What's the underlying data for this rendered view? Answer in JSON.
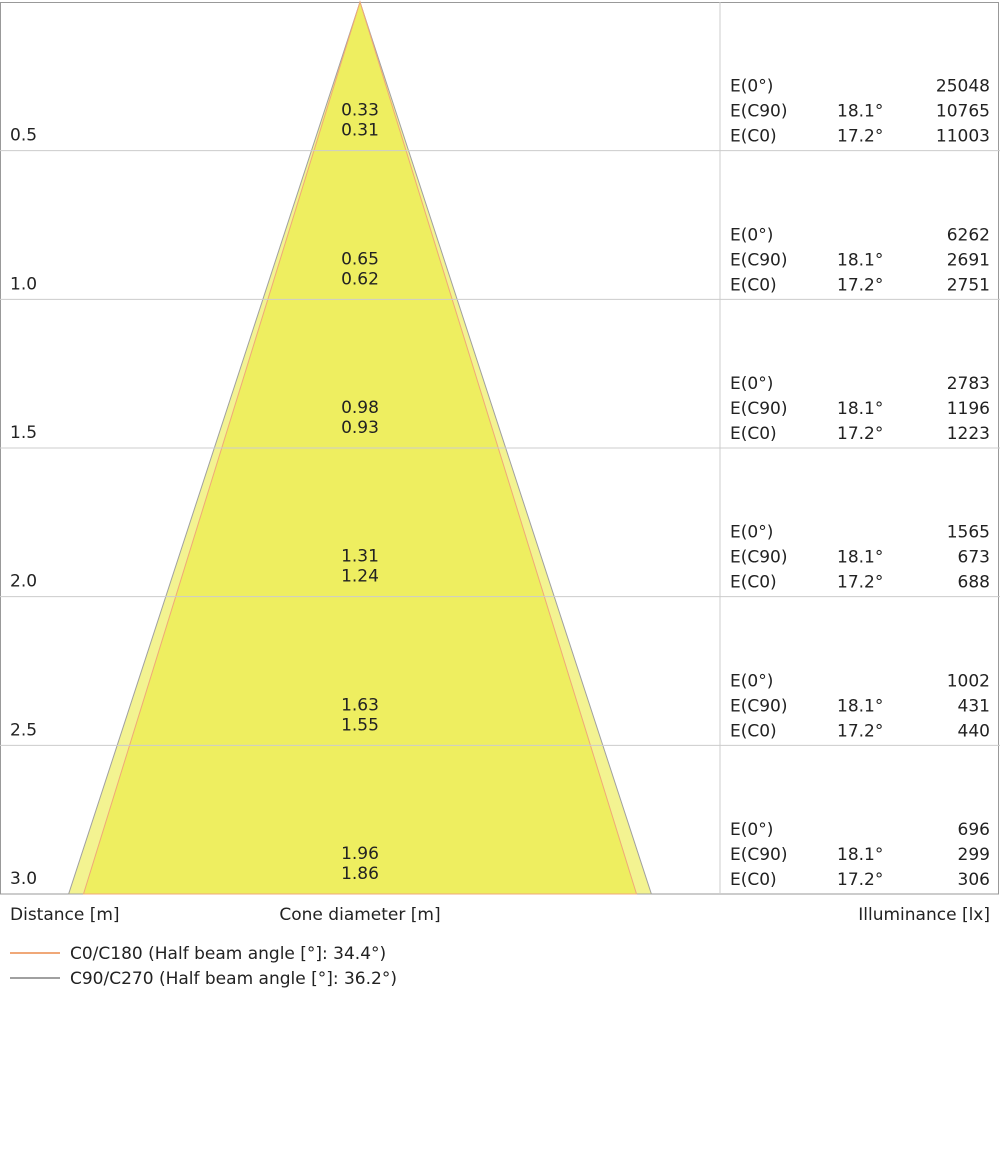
{
  "axis_labels": {
    "distance": "Distance [m]",
    "diameter": "Cone diameter [m]",
    "illuminance": "Illuminance [lx]"
  },
  "legend": [
    {
      "label": "C0/C180 (Half beam angle [°]: 34.4°)",
      "color": "#f0a878"
    },
    {
      "label": "C90/C270 (Half beam angle [°]: 36.2°)",
      "color": "#a0a0a0"
    }
  ],
  "rows": [
    {
      "distance": "0.5",
      "diameter_c90": 0.33,
      "diameter_c0": 0.31,
      "readings": [
        {
          "label": "E(0°)",
          "value": 25048
        },
        {
          "label": "E(C90)",
          "angle": "18.1°",
          "value": 10765
        },
        {
          "label": "E(C0)",
          "angle": "17.2°",
          "value": 11003
        }
      ]
    },
    {
      "distance": "1.0",
      "diameter_c90": 0.65,
      "diameter_c0": 0.62,
      "readings": [
        {
          "label": "E(0°)",
          "value": 6262
        },
        {
          "label": "E(C90)",
          "angle": "18.1°",
          "value": 2691
        },
        {
          "label": "E(C0)",
          "angle": "17.2°",
          "value": 2751
        }
      ]
    },
    {
      "distance": "1.5",
      "diameter_c90": 0.98,
      "diameter_c0": 0.93,
      "readings": [
        {
          "label": "E(0°)",
          "value": 2783
        },
        {
          "label": "E(C90)",
          "angle": "18.1°",
          "value": 1196
        },
        {
          "label": "E(C0)",
          "angle": "17.2°",
          "value": 1223
        }
      ]
    },
    {
      "distance": "2.0",
      "diameter_c90": 1.31,
      "diameter_c0": 1.24,
      "readings": [
        {
          "label": "E(0°)",
          "value": 1565
        },
        {
          "label": "E(C90)",
          "angle": "18.1°",
          "value": 673
        },
        {
          "label": "E(C0)",
          "angle": "17.2°",
          "value": 688
        }
      ]
    },
    {
      "distance": "2.5",
      "diameter_c90": 1.63,
      "diameter_c0": 1.55,
      "readings": [
        {
          "label": "E(0°)",
          "value": 1002
        },
        {
          "label": "E(C90)",
          "angle": "18.1°",
          "value": 431
        },
        {
          "label": "E(C0)",
          "angle": "17.2°",
          "value": 440
        }
      ]
    },
    {
      "distance": "3.0",
      "diameter_c90": 1.96,
      "diameter_c0": 1.86,
      "readings": [
        {
          "label": "E(0°)",
          "value": 696
        },
        {
          "label": "E(C90)",
          "angle": "18.1°",
          "value": 299
        },
        {
          "label": "E(C0)",
          "angle": "17.2°",
          "value": 306
        }
      ]
    }
  ]
}
